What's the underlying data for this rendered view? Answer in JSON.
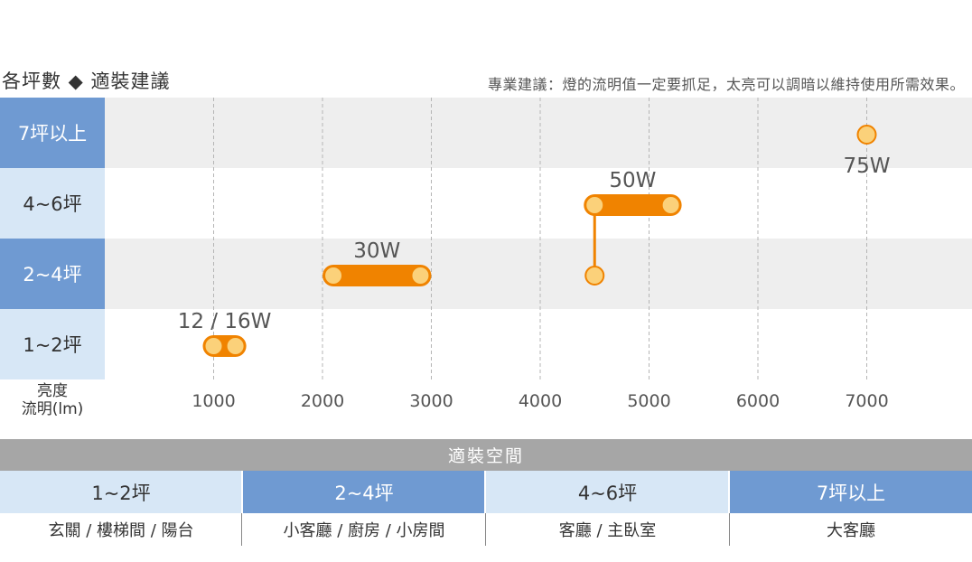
{
  "header": {
    "title": "各坪數 ◆ 適裝建議",
    "note": "專業建議：燈的流明值一定要抓足，太亮可以調暗以維持使用所需效果。"
  },
  "chart_data": {
    "type": "range-bar",
    "title": "各坪數 ◆ 適裝建議",
    "xlabel_line1": "亮度",
    "xlabel_line2": "流明(lm)",
    "xlim": [
      0,
      9000
    ],
    "x_ticks": [
      "1000",
      "2000",
      "3000",
      "4000",
      "5000",
      "6000",
      "7000"
    ],
    "grid": "vertical-dashed",
    "rows": [
      {
        "label": "7坪以上",
        "style": "dark"
      },
      {
        "label": "4~6坪",
        "style": "light"
      },
      {
        "label": "2~4坪",
        "style": "dark"
      },
      {
        "label": "1~2坪",
        "style": "light"
      }
    ],
    "ranges": [
      {
        "label": "12 / 16W",
        "row": 3,
        "x_start": 1000,
        "x_end": 1200
      },
      {
        "label": "30W",
        "row": 2,
        "x_start": 2100,
        "x_end": 2900
      },
      {
        "label": "50W",
        "row": 1,
        "x_start": 4500,
        "x_end": 5200,
        "connector_row": 2
      },
      {
        "label": "75W",
        "row": 0,
        "x_start": 7000,
        "x_end": 7000
      }
    ],
    "colors": {
      "bar": "#f08300",
      "dot_fill": "#fbd17a",
      "dot_stroke": "#f08300"
    }
  },
  "spaces": {
    "header": "適裝空間",
    "columns": [
      {
        "category": "1~2坪",
        "rooms": "玄關 /  樓梯間 / 陽台",
        "style": "light"
      },
      {
        "category": "2~4坪",
        "rooms": "小客廳 / 廚房 / 小房間",
        "style": "dark"
      },
      {
        "category": "4~6坪",
        "rooms": "客廳 / 主臥室",
        "style": "light"
      },
      {
        "category": "7坪以上",
        "rooms": "大客廳",
        "style": "dark"
      }
    ]
  }
}
